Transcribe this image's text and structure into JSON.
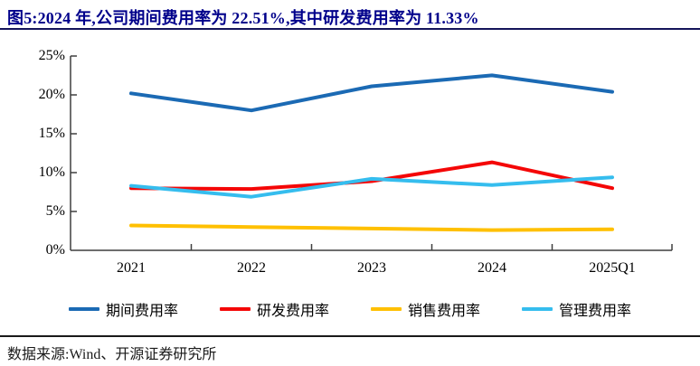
{
  "title": "图5:2024 年,公司期间费用率为 22.51%,其中研发费用率为 11.33%",
  "source": "数据来源:Wind、开源证券研究所",
  "title_color": "#00008B",
  "chart_data": {
    "type": "line",
    "title": "图5:2024 年,公司期间费用率为 22.51%,其中研发费用率为 11.33%",
    "categories": [
      "2021",
      "2022",
      "2023",
      "2024",
      "2025Q1"
    ],
    "series": [
      {
        "name": "期间费用率",
        "color": "#1B6AB4",
        "values": [
          20.2,
          18.0,
          21.1,
          22.51,
          20.4
        ]
      },
      {
        "name": "研发费用率",
        "color": "#F40707",
        "values": [
          8.0,
          7.9,
          8.9,
          11.33,
          8.0
        ]
      },
      {
        "name": "销售费用率",
        "color": "#FFC000",
        "values": [
          3.2,
          3.0,
          2.8,
          2.6,
          2.7
        ]
      },
      {
        "name": "管理费用率",
        "color": "#35BDEE",
        "values": [
          8.3,
          6.9,
          9.2,
          8.4,
          9.4
        ]
      }
    ],
    "xlabel": "",
    "ylabel": "",
    "ylim": [
      0,
      25
    ],
    "ytick_labels": [
      "25%",
      "20%",
      "15%",
      "10%",
      "5%",
      "0%"
    ],
    "grid": false,
    "legend_position": "bottom"
  }
}
